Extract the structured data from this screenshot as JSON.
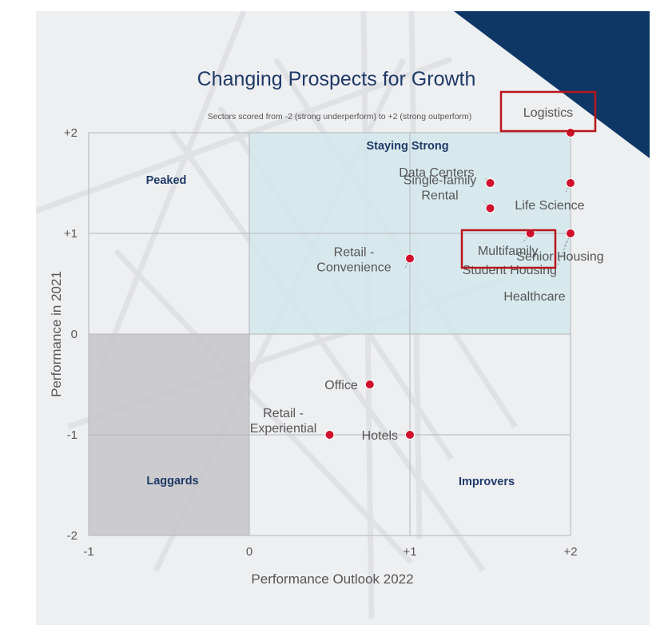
{
  "chart_data": {
    "type": "scatter",
    "title": "Changing Prospects for Growth",
    "subtitle": "Sectors scored from -2 (strong underperform) to +2 (strong outperform)",
    "xlabel": "Performance Outlook 2022",
    "ylabel": "Performance in 2021",
    "xlim": [
      -1,
      2
    ],
    "ylim": [
      -2,
      2
    ],
    "x_ticks": [
      "-1",
      "0",
      "+1",
      "+2"
    ],
    "y_ticks": [
      "+2",
      "+1",
      "0",
      "-1",
      "-2"
    ],
    "grid": true,
    "quadrants": [
      {
        "label": "Peaked"
      },
      {
        "label": "Staying Strong"
      },
      {
        "label": "Laggards"
      },
      {
        "label": "Improvers"
      }
    ],
    "points": [
      {
        "label": "Logistics",
        "x": 2,
        "y": 2,
        "highlighted": true
      },
      {
        "label": "Life Science",
        "x": 2,
        "y": 1.5
      },
      {
        "label": "Data Centers",
        "x": 1.5,
        "y": 1.5
      },
      {
        "label": "Single-family\nRental",
        "x": 1.5,
        "y": 1.25
      },
      {
        "label": "Senior Housing",
        "x": 2,
        "y": 1
      },
      {
        "label": "Multifamily",
        "x": 1.75,
        "y": 1,
        "highlighted": true
      },
      {
        "label": "Student Housing",
        "x": 1.75,
        "y": 1
      },
      {
        "label": "Healthcare",
        "x": 2,
        "y": 1
      },
      {
        "label": "Retail -\nConvenience",
        "x": 1,
        "y": 0.75
      },
      {
        "label": "Office",
        "x": 0.75,
        "y": -0.5
      },
      {
        "label": "Retail -\nExperiential",
        "x": 0.5,
        "y": -1
      },
      {
        "label": "Hotels",
        "x": 1,
        "y": -1
      }
    ]
  },
  "colors": {
    "title": "#1f3a68",
    "navy_corner": "#0e3766",
    "point": "#d0102c",
    "highlight_box": "#b8161c",
    "staying_strong_fill": "#d4e7ec",
    "laggards_fill": "#c8c8ca"
  }
}
